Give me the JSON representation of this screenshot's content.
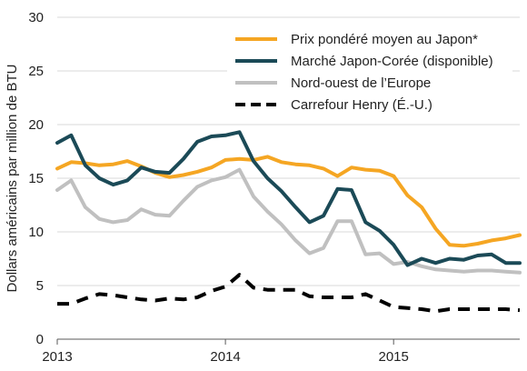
{
  "chart_data": {
    "type": "line",
    "title": "",
    "xlabel": "",
    "ylabel": "Dollars américains par million de BTU",
    "ylim": [
      0,
      30
    ],
    "yticks": [
      0,
      5,
      10,
      15,
      20,
      25,
      30
    ],
    "xlim": [
      2013.0,
      2015.75
    ],
    "xticks": [
      {
        "value": 2013.0,
        "label": "2013"
      },
      {
        "value": 2014.0,
        "label": "2014"
      },
      {
        "value": 2015.0,
        "label": "2015"
      }
    ],
    "grid": {
      "horizontal": true,
      "vertical": false
    },
    "legend_position": "top-right",
    "x": [
      2013.0,
      2013.083,
      2013.167,
      2013.25,
      2013.333,
      2013.417,
      2013.5,
      2013.583,
      2013.667,
      2013.75,
      2013.833,
      2013.917,
      2014.0,
      2014.083,
      2014.167,
      2014.25,
      2014.333,
      2014.417,
      2014.5,
      2014.583,
      2014.667,
      2014.75,
      2014.833,
      2014.917,
      2015.0,
      2015.083,
      2015.167,
      2015.25,
      2015.333,
      2015.417,
      2015.5,
      2015.583,
      2015.667,
      2015.75
    ],
    "series": [
      {
        "name": "Prix pondéré moyen au Japon*",
        "color": "#F5A623",
        "dash": "solid",
        "values": [
          15.9,
          16.5,
          16.4,
          16.2,
          16.3,
          16.6,
          16.1,
          15.5,
          15.1,
          15.3,
          15.6,
          16.0,
          16.7,
          16.8,
          16.7,
          17.0,
          16.5,
          16.3,
          16.2,
          15.9,
          15.2,
          16.0,
          15.8,
          15.7,
          15.2,
          13.4,
          12.3,
          10.3,
          8.8,
          8.7,
          8.9,
          9.2,
          9.4,
          9.7
        ]
      },
      {
        "name": "Marché Japon-Corée (disponible)",
        "color": "#1B4A57",
        "dash": "solid",
        "values": [
          18.3,
          19.0,
          16.2,
          15.0,
          14.4,
          14.8,
          16.0,
          15.6,
          15.5,
          16.8,
          18.4,
          18.9,
          19.0,
          19.3,
          16.6,
          15.0,
          13.8,
          12.3,
          10.9,
          11.5,
          14.0,
          13.9,
          10.9,
          10.1,
          8.8,
          6.9,
          7.5,
          7.1,
          7.5,
          7.4,
          7.8,
          7.9,
          7.1,
          7.1
        ]
      },
      {
        "name": "Nord-ouest de l’Europe",
        "color": "#C0C0C0",
        "dash": "solid",
        "values": [
          13.9,
          14.8,
          12.3,
          11.2,
          10.9,
          11.1,
          12.1,
          11.6,
          11.5,
          12.9,
          14.2,
          14.8,
          15.1,
          15.8,
          13.3,
          11.9,
          10.7,
          9.2,
          8.0,
          8.5,
          11.0,
          11.0,
          7.9,
          8.0,
          7.0,
          7.2,
          6.8,
          6.5,
          6.4,
          6.3,
          6.4,
          6.4,
          6.3,
          6.2
        ]
      },
      {
        "name": "Carrefour Henry (É.-U.)",
        "color": "#000000",
        "dash": "dashed",
        "values": [
          3.3,
          3.3,
          3.8,
          4.2,
          4.1,
          3.9,
          3.7,
          3.6,
          3.8,
          3.7,
          3.9,
          4.5,
          4.9,
          6.0,
          4.8,
          4.6,
          4.6,
          4.6,
          4.0,
          3.9,
          3.9,
          3.9,
          4.2,
          3.6,
          3.0,
          2.9,
          2.8,
          2.6,
          2.8,
          2.8,
          2.8,
          2.8,
          2.8,
          2.7
        ]
      }
    ]
  }
}
